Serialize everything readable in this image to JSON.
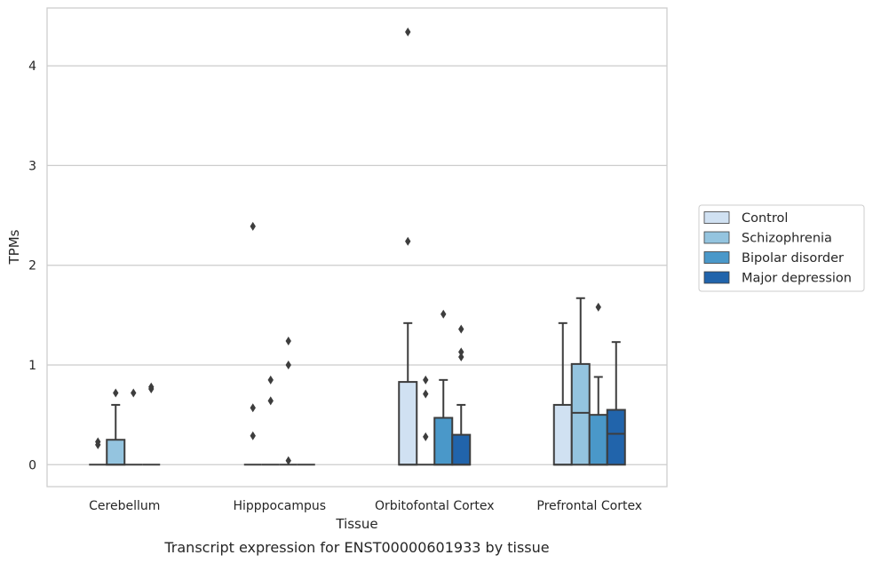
{
  "caption": "Transcript expression for ENST00000601933 by tissue",
  "chart_data": {
    "type": "box",
    "xlabel": "Tissue",
    "ylabel": "TPMs",
    "ylim": [
      -0.22,
      4.58
    ],
    "yticks": [
      0,
      1,
      2,
      3,
      4
    ],
    "grid": true,
    "legend_position": "right",
    "categories": [
      "Cerebellum",
      "Hipppocampus",
      "Orbitofontal Cortex",
      "Prefrontal Cortex"
    ],
    "series": [
      {
        "name": "Control",
        "color": "#d0e1f2",
        "boxes": [
          {
            "q1": 0,
            "median": 0,
            "q3": 0,
            "whisker_low": 0,
            "whisker_high": 0,
            "outliers": [
              0.2,
              0.23
            ]
          },
          {
            "q1": 0,
            "median": 0,
            "q3": 0,
            "whisker_low": 0,
            "whisker_high": 0,
            "outliers": [
              0.29,
              0.57,
              2.39
            ]
          },
          {
            "q1": 0,
            "median": 0,
            "q3": 0.83,
            "whisker_low": 0,
            "whisker_high": 1.42,
            "outliers": [
              2.24,
              4.34
            ]
          },
          {
            "q1": 0,
            "median": 0,
            "q3": 0.6,
            "whisker_low": 0,
            "whisker_high": 1.42,
            "outliers": []
          }
        ]
      },
      {
        "name": "Schizophrenia",
        "color": "#94c4df",
        "boxes": [
          {
            "q1": 0,
            "median": 0,
            "q3": 0.25,
            "whisker_low": 0,
            "whisker_high": 0.6,
            "outliers": [
              0.72
            ]
          },
          {
            "q1": 0,
            "median": 0,
            "q3": 0,
            "whisker_low": 0,
            "whisker_high": 0,
            "outliers": [
              0.64,
              0.85
            ]
          },
          {
            "q1": 0,
            "median": 0,
            "q3": 0,
            "whisker_low": 0,
            "whisker_high": 0,
            "outliers": [
              0.28,
              0.71,
              0.85
            ]
          },
          {
            "q1": 0,
            "median": 0.52,
            "q3": 1.01,
            "whisker_low": 0,
            "whisker_high": 1.67,
            "outliers": []
          }
        ]
      },
      {
        "name": "Bipolar disorder",
        "color": "#4a98c9",
        "boxes": [
          {
            "q1": 0,
            "median": 0,
            "q3": 0,
            "whisker_low": 0,
            "whisker_high": 0,
            "outliers": [
              0.72
            ]
          },
          {
            "q1": 0,
            "median": 0,
            "q3": 0,
            "whisker_low": 0,
            "whisker_high": 0,
            "outliers": [
              0.04,
              1.0,
              1.24
            ]
          },
          {
            "q1": 0,
            "median": 0,
            "q3": 0.47,
            "whisker_low": 0,
            "whisker_high": 0.85,
            "outliers": [
              1.51
            ]
          },
          {
            "q1": 0,
            "median": 0,
            "q3": 0.5,
            "whisker_low": 0,
            "whisker_high": 0.88,
            "outliers": [
              1.58
            ]
          }
        ]
      },
      {
        "name": "Major depression",
        "color": "#2164ab",
        "boxes": [
          {
            "q1": 0,
            "median": 0,
            "q3": 0,
            "whisker_low": 0,
            "whisker_high": 0,
            "outliers": [
              0.76,
              0.78
            ]
          },
          {
            "q1": 0,
            "median": 0,
            "q3": 0,
            "whisker_low": 0,
            "whisker_high": 0,
            "outliers": []
          },
          {
            "q1": 0,
            "median": 0,
            "q3": 0.3,
            "whisker_low": 0,
            "whisker_high": 0.6,
            "outliers": [
              1.08,
              1.13,
              1.36
            ]
          },
          {
            "q1": 0,
            "median": 0.31,
            "q3": 0.55,
            "whisker_low": 0,
            "whisker_high": 1.23,
            "outliers": []
          }
        ]
      }
    ]
  }
}
